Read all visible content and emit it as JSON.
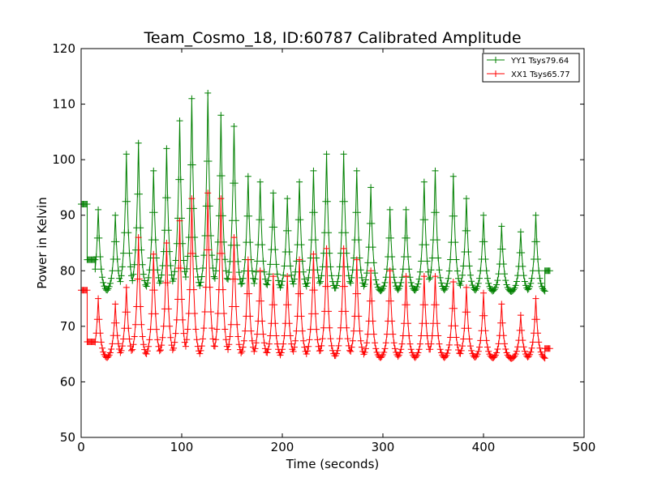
{
  "chart_data": {
    "type": "line",
    "title": "Team_Cosmo_18, ID:60787 Calibrated Amplitude",
    "xlabel": "Time (seconds)",
    "ylabel": "Power in Kelvin",
    "xlim": [
      0,
      500
    ],
    "ylim": [
      50,
      120
    ],
    "xticks": [
      0,
      100,
      200,
      300,
      400,
      500
    ],
    "yticks": [
      50,
      60,
      70,
      80,
      90,
      100,
      110,
      120
    ],
    "grid": false,
    "legend_position": "top-right",
    "marker": "+",
    "sample_interval": 1,
    "series": [
      {
        "name": "YY1 Tsys79.64",
        "color": "#008000",
        "segments": [
          {
            "t0": 0,
            "t1": 6,
            "base": 92,
            "peaks": []
          },
          {
            "t0": 6,
            "t1": 14,
            "base": 82,
            "peaks": []
          },
          {
            "t0": 14,
            "t1": 461,
            "base": 76,
            "peaks": [
              [
                17,
                91
              ],
              [
                34,
                90
              ],
              [
                45,
                101
              ],
              [
                57,
                103
              ],
              [
                72,
                98
              ],
              [
                85,
                102
              ],
              [
                98,
                107
              ],
              [
                110,
                111
              ],
              [
                126,
                112
              ],
              [
                139,
                108
              ],
              [
                152,
                106
              ],
              [
                166,
                97
              ],
              [
                178,
                96
              ],
              [
                191,
                94
              ],
              [
                205,
                93
              ],
              [
                217,
                96
              ],
              [
                231,
                98
              ],
              [
                244,
                101
              ],
              [
                261,
                101
              ],
              [
                274,
                98
              ],
              [
                288,
                95
              ],
              [
                307,
                91
              ],
              [
                323,
                91
              ],
              [
                341,
                96
              ],
              [
                352,
                98
              ],
              [
                370,
                97
              ],
              [
                383,
                93
              ],
              [
                400,
                90
              ],
              [
                418,
                88
              ],
              [
                437,
                87
              ],
              [
                452,
                90
              ]
            ]
          },
          {
            "t0": 461,
            "t1": 466,
            "base": 80,
            "peaks": []
          }
        ]
      },
      {
        "name": "XX1 Tsys65.77",
        "color": "#ff0000",
        "segments": [
          {
            "t0": 0,
            "t1": 6,
            "base": 76.5,
            "peaks": []
          },
          {
            "t0": 6,
            "t1": 14,
            "base": 67.2,
            "peaks": []
          },
          {
            "t0": 14,
            "t1": 461,
            "base": 64,
            "peaks": [
              [
                17,
                75
              ],
              [
                34,
                74
              ],
              [
                45,
                77
              ],
              [
                57,
                86
              ],
              [
                72,
                83
              ],
              [
                85,
                85
              ],
              [
                98,
                89
              ],
              [
                110,
                93
              ],
              [
                126,
                94
              ],
              [
                139,
                93
              ],
              [
                152,
                86
              ],
              [
                166,
                82
              ],
              [
                178,
                80
              ],
              [
                191,
                79
              ],
              [
                205,
                79
              ],
              [
                217,
                82
              ],
              [
                231,
                83
              ],
              [
                244,
                84
              ],
              [
                261,
                84
              ],
              [
                274,
                82
              ],
              [
                288,
                80
              ],
              [
                307,
                80
              ],
              [
                323,
                79
              ],
              [
                341,
                79
              ],
              [
                352,
                79
              ],
              [
                370,
                78
              ],
              [
                383,
                77
              ],
              [
                400,
                76
              ],
              [
                418,
                74
              ],
              [
                437,
                72
              ],
              [
                452,
                75
              ]
            ]
          },
          {
            "t0": 461,
            "t1": 466,
            "base": 66,
            "peaks": []
          }
        ]
      }
    ]
  }
}
